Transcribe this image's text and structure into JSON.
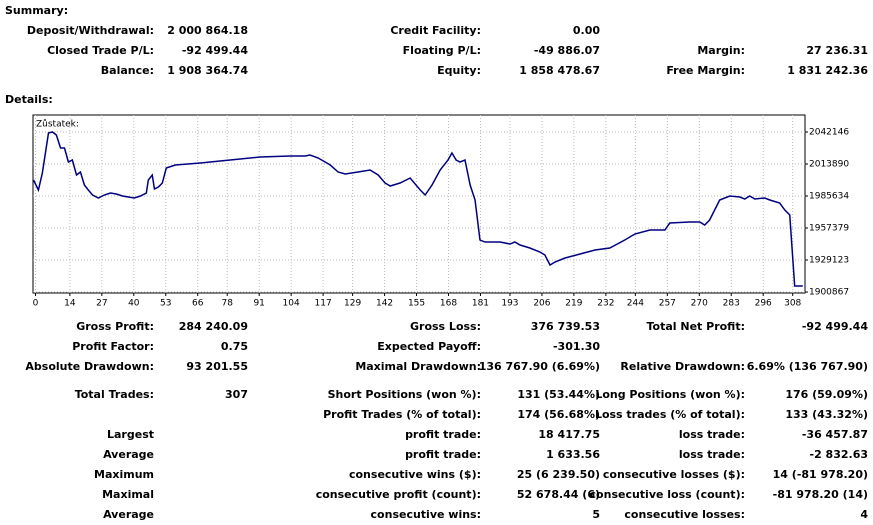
{
  "summary": {
    "title": "Summary:",
    "rows": [
      [
        "Deposit/Withdrawal:",
        "2 000 864.18",
        "Credit Facility:",
        "0.00",
        null,
        null
      ],
      [
        "Closed Trade P/L:",
        "-92 499.44",
        "Floating P/L:",
        "-49 886.07",
        "Margin:",
        "27 236.31"
      ],
      [
        "Balance:",
        "1 908 364.74",
        "Equity:",
        "1 858 478.67",
        "Free Margin:",
        "1 831 242.36"
      ]
    ]
  },
  "details": {
    "title": "Details:",
    "rows": [
      [
        "Gross Profit:",
        "284 240.09",
        "Gross Loss:",
        "376 739.53",
        "Total Net Profit:",
        "-92 499.44"
      ],
      [
        "Profit Factor:",
        "0.75",
        "Expected Payoff:",
        "-301.30",
        null,
        null
      ],
      [
        "Absolute Drawdown:",
        "93 201.55",
        "Maximal Drawdown:",
        "136 767.90 (6.69%)",
        "Relative Drawdown:",
        "6.69% (136 767.90)"
      ],
      [
        "Total Trades:",
        "307",
        "Short Positions (won %):",
        "131 (53.44%)",
        "Long Positions (won %):",
        "176 (59.09%)"
      ],
      [
        null,
        null,
        "Profit Trades (% of total):",
        "174 (56.68%)",
        "Loss trades (% of total):",
        "133 (43.32%)"
      ],
      [
        "Largest",
        null,
        "profit trade:",
        "18 417.75",
        "loss trade:",
        "-36 457.87"
      ],
      [
        "Average",
        null,
        "profit trade:",
        "1 633.56",
        "loss trade:",
        "-2 832.63"
      ],
      [
        "Maximum",
        null,
        "consecutive wins ($):",
        "25 (6 239.50)",
        "consecutive losses ($):",
        "14 (-81 978.20)"
      ],
      [
        "Maximal",
        null,
        "consecutive profit (count):",
        "52 678.44 (6)",
        "consecutive loss (count):",
        "-81 978.20 (14)"
      ],
      [
        "Average",
        null,
        "consecutive wins:",
        "5",
        "consecutive losses:",
        "4"
      ]
    ]
  },
  "chart_data": {
    "type": "line",
    "grid": true,
    "series": [
      {
        "name": "Zůstatek:",
        "color": "#000080",
        "x": [
          -0.8,
          1.2,
          2.8,
          5.3,
          6.9,
          8.5,
          10.2,
          11.8,
          13.4,
          15.0,
          16.7,
          18.3,
          19.9,
          21.5,
          23.2,
          25.6,
          28.0,
          30.5,
          32.9,
          35.4,
          37.8,
          40.2,
          42.7,
          45.1,
          45.9,
          47.5,
          48.4,
          50.0,
          51.6,
          53.2,
          56.9,
          67.0,
          79.2,
          91.4,
          103.6,
          109.7,
          111.7,
          115.0,
          119.9,
          123.1,
          126.0,
          131.2,
          136.1,
          139.4,
          142.2,
          144.3,
          148.3,
          152.4,
          156.5,
          158.5,
          161.3,
          164.6,
          167.8,
          169.4,
          171.1,
          172.7,
          174.7,
          176.8,
          178.8,
          180.8,
          182.9,
          189.0,
          193.0,
          195.0,
          197.1,
          201.1,
          205.2,
          207.2,
          209.3,
          211.3,
          215.4,
          221.5,
          227.6,
          233.6,
          239.7,
          243.8,
          249.9,
          256.0,
          258.0,
          266.1,
          270.2,
          272.2,
          274.2,
          278.3,
          282.4,
          286.5,
          288.5,
          290.5,
          292.6,
          296.6,
          298.7,
          302.7,
          304.8,
          306.8,
          308.8,
          312.1
        ],
        "values": [
          1999762,
          1990932,
          2005944,
          2041263,
          2042146,
          2039497,
          2028018,
          2028018,
          2015656,
          2017422,
          2004177,
          2006826,
          1995347,
          1990932,
          1986517,
          1983868,
          1986517,
          1988283,
          1987400,
          1985634,
          1984751,
          1983868,
          1985634,
          1988283,
          1999762,
          2004177,
          1991815,
          1993580,
          1997113,
          2010358,
          2013007,
          2014773,
          2017422,
          2020071,
          2020954,
          2020954,
          2021837,
          2019188,
          2013007,
          2006826,
          2005060,
          2006826,
          2008592,
          2004177,
          1997113,
          1994464,
          1997113,
          2001526,
          1990932,
          1986517,
          1995347,
          2008592,
          2017422,
          2023603,
          2017422,
          2015656,
          2017422,
          1995347,
          1982101,
          1946782,
          1945016,
          1945016,
          1943250,
          1945016,
          1942367,
          1939718,
          1936186,
          1933537,
          1924707,
          1927356,
          1930888,
          1934420,
          1937952,
          1939718,
          1946782,
          1952080,
          1955612,
          1955612,
          1961793,
          1962676,
          1962676,
          1960027,
          1964442,
          1982101,
          1985634,
          1984751,
          1982985,
          1985634,
          1982985,
          1983868,
          1982101,
          1979452,
          1973271,
          1968856,
          1906164,
          1906164
        ]
      }
    ],
    "xlim": [
      -1,
      313
    ],
    "xticks": [
      0,
      14,
      27,
      40,
      53,
      66,
      78,
      91,
      104,
      117,
      129,
      142,
      155,
      168,
      181,
      193,
      206,
      219,
      232,
      244,
      257,
      270,
      283,
      296,
      308
    ],
    "ylim": [
      1900000,
      2057157
    ],
    "yticks": [
      1900867,
      1929123,
      1957379,
      1985634,
      2013890,
      2042146
    ]
  }
}
